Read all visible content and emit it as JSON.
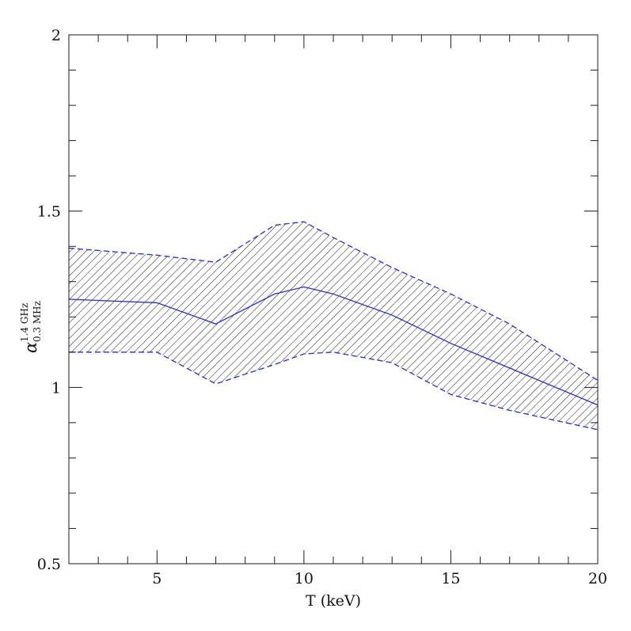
{
  "chart_data": {
    "type": "area",
    "xlabel": "T (keV)",
    "ylabel": {
      "symbol": "α",
      "superscript": "1.4 GHz",
      "subscript": "0.3 MHz"
    },
    "xlim": [
      2,
      20
    ],
    "ylim": [
      0.5,
      2
    ],
    "x_ticks": [
      5,
      10,
      15,
      20
    ],
    "x_tick_labels": [
      "5",
      "10",
      "15",
      "20"
    ],
    "y_ticks": [
      0.5,
      1,
      1.5,
      2
    ],
    "y_tick_labels": [
      "0.5",
      "1",
      "1.5",
      "2"
    ],
    "grid": false,
    "series": [
      {
        "style": "solid",
        "x": [
          2,
          5,
          7,
          9,
          10,
          11,
          13,
          15,
          17,
          20
        ],
        "y": [
          1.25,
          1.24,
          1.18,
          1.265,
          1.285,
          1.265,
          1.205,
          1.125,
          1.055,
          0.95
        ]
      },
      {
        "style": "dashed",
        "x": [
          2,
          5,
          7,
          9,
          10,
          11,
          13,
          15,
          17,
          20
        ],
        "y": [
          1.395,
          1.375,
          1.355,
          1.46,
          1.47,
          1.425,
          1.34,
          1.265,
          1.18,
          1.02
        ]
      },
      {
        "style": "dashed",
        "x": [
          2,
          5,
          7,
          9,
          10,
          11,
          13,
          15,
          17,
          20
        ],
        "y": [
          1.1,
          1.1,
          1.01,
          1.065,
          1.095,
          1.1,
          1.07,
          0.98,
          0.935,
          0.88
        ]
      }
    ],
    "colors": {
      "line": "#2a2ad8",
      "hatch": "#1a1a1a",
      "frame": "#1a1a1a"
    }
  }
}
